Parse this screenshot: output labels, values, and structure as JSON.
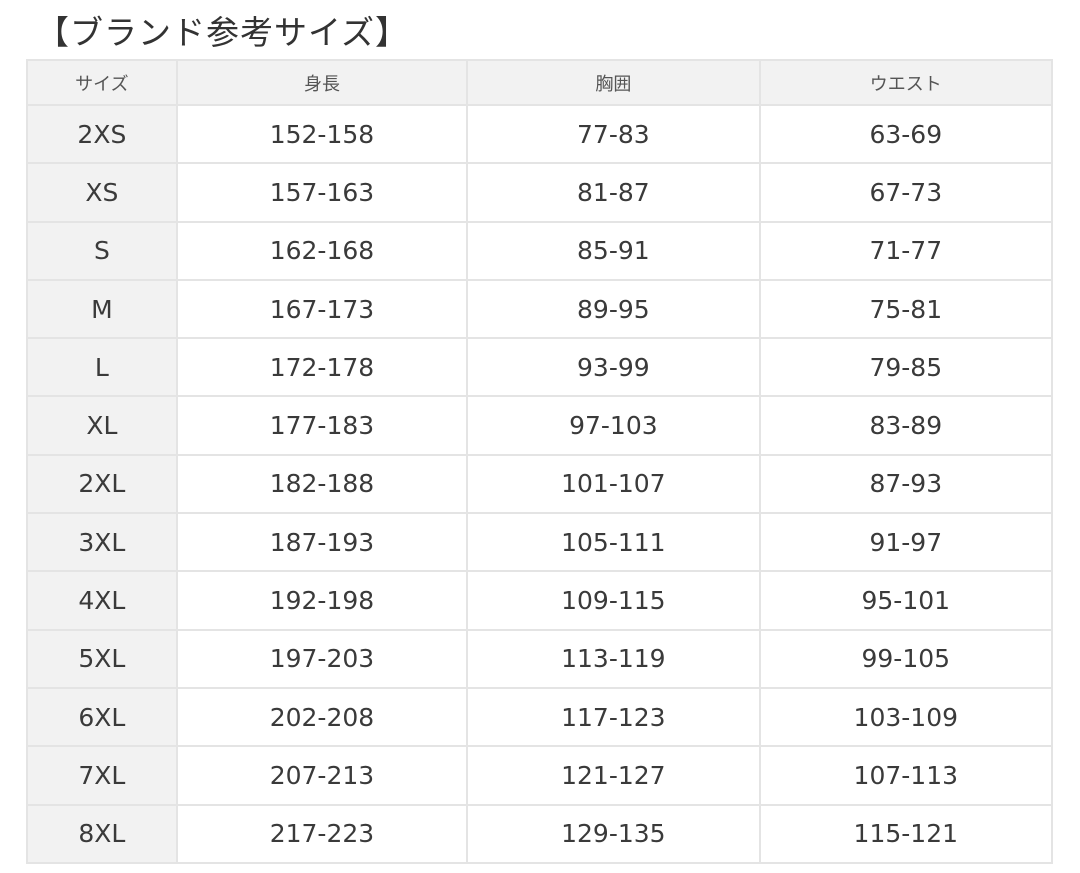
{
  "title": "【ブランド参考サイズ】",
  "table": {
    "headers": [
      "サイズ",
      "身長",
      "胸囲",
      "ウエスト"
    ],
    "rows": [
      [
        "2XS",
        "152-158",
        "77-83",
        "63-69"
      ],
      [
        "XS",
        "157-163",
        "81-87",
        "67-73"
      ],
      [
        "S",
        "162-168",
        "85-91",
        "71-77"
      ],
      [
        "M",
        "167-173",
        "89-95",
        "75-81"
      ],
      [
        "L",
        "172-178",
        "93-99",
        "79-85"
      ],
      [
        "XL",
        "177-183",
        "97-103",
        "83-89"
      ],
      [
        "2XL",
        "182-188",
        "101-107",
        "87-93"
      ],
      [
        "3XL",
        "187-193",
        "105-111",
        "91-97"
      ],
      [
        "4XL",
        "192-198",
        "109-115",
        "95-101"
      ],
      [
        "5XL",
        "197-203",
        "113-119",
        "99-105"
      ],
      [
        "6XL",
        "202-208",
        "117-123",
        "103-109"
      ],
      [
        "7XL",
        "207-213",
        "121-127",
        "107-113"
      ],
      [
        "8XL",
        "217-223",
        "129-135",
        "115-121"
      ]
    ]
  },
  "colors": {
    "border": "#e4e4e4",
    "header_bg": "#f2f2f2",
    "text": "#333333"
  }
}
